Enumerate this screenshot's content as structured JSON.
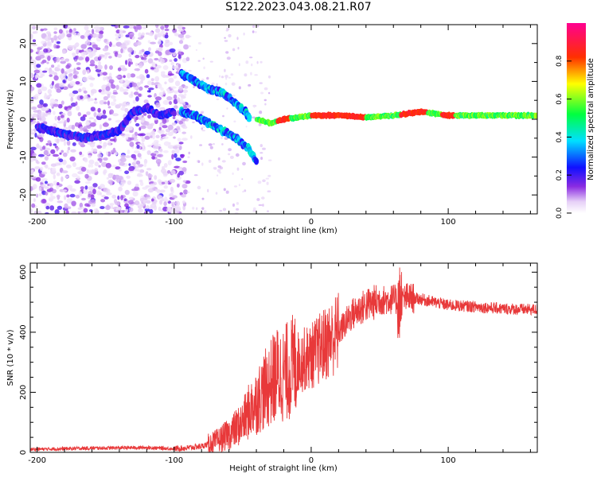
{
  "page": {
    "title": "S122.2023.043.08.21.R07"
  },
  "chart_data": [
    {
      "type": "heatmap",
      "xlabel": "Height of straight line (km)",
      "ylabel": "Frequency (Hz)",
      "xlim": [
        -205,
        165
      ],
      "ylim": [
        -25,
        25
      ],
      "xticks": [
        -200,
        -100,
        0,
        100
      ],
      "yticks": [
        -20,
        -10,
        0,
        10,
        20
      ],
      "colorbar": {
        "label": "Normalized spectral amplitude",
        "range": [
          0,
          1
        ],
        "ticks": [
          "0.0",
          "0.2",
          "0.4",
          "0.6",
          "0.8"
        ],
        "tick_values": [
          0.0,
          0.2,
          0.4,
          0.6,
          0.8
        ],
        "colormap": "white-purple-blue-cyan-green-yellow-red-magenta"
      },
      "ridges": [
        {
          "x": [
            -200,
            -180,
            -165,
            -150,
            -140,
            -130,
            -120,
            -110,
            -100
          ],
          "y": [
            -2,
            -4,
            -5,
            -4,
            -3,
            2,
            3,
            1,
            2
          ]
        },
        {
          "x": [
            -95,
            -85,
            -75,
            -65,
            -55,
            -48,
            -45
          ],
          "y": [
            12,
            10,
            8,
            7,
            4,
            2,
            0
          ]
        },
        {
          "x": [
            -95,
            -85,
            -75,
            -65,
            -55,
            -45,
            -40
          ],
          "y": [
            2,
            1,
            -1,
            -3,
            -5,
            -8,
            -11
          ]
        },
        {
          "x": [
            -40,
            -30,
            -20,
            0,
            20,
            40,
            60,
            80,
            100,
            120,
            140,
            165
          ],
          "y": [
            0,
            -1,
            0,
            1,
            1,
            0.5,
            1,
            2,
            1,
            1,
            1,
            1
          ]
        }
      ]
    },
    {
      "type": "line",
      "xlabel": "Height of straight line (km)",
      "ylabel": "SNR (10 * v/v)",
      "xlim": [
        -205,
        165
      ],
      "ylim": [
        0,
        630
      ],
      "xticks": [
        -200,
        -100,
        0,
        100
      ],
      "yticks": [
        0,
        200,
        400,
        600
      ],
      "color": "#e8393a",
      "series": [
        {
          "x": [
            -205,
            -180,
            -160,
            -140,
            -120,
            -100,
            -90,
            -80,
            -70,
            -60,
            -50,
            -45,
            -40,
            -35,
            -30,
            -25,
            -20,
            -15,
            -10,
            -5,
            0,
            5,
            10,
            15,
            20,
            25,
            30,
            40,
            50,
            60,
            65,
            70,
            80,
            90,
            100,
            120,
            140,
            165
          ],
          "y": [
            10,
            12,
            14,
            15,
            16,
            12,
            15,
            20,
            35,
            60,
            100,
            140,
            170,
            200,
            230,
            260,
            260,
            280,
            300,
            310,
            320,
            340,
            360,
            380,
            400,
            430,
            460,
            490,
            505,
            510,
            500,
            515,
            510,
            500,
            490,
            485,
            478,
            475
          ]
        }
      ]
    }
  ]
}
